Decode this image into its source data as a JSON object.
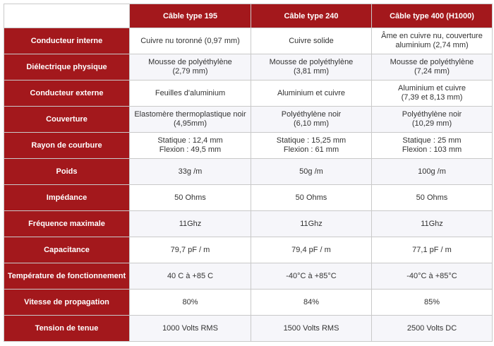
{
  "columns": [
    "Câble type 195",
    "Câble type 240",
    "Câble type 400 (H1000)"
  ],
  "rows": [
    {
      "label": "Conducteur interne",
      "values": [
        [
          "Cuivre nu toronné (0,97 mm)"
        ],
        [
          "Cuivre solide"
        ],
        [
          "Âme en cuivre nu, couverture",
          "aluminium (2,74 mm)"
        ]
      ]
    },
    {
      "label": "Diélectrique physique",
      "values": [
        [
          "Mousse de polyéthylène",
          "(2,79 mm)"
        ],
        [
          "Mousse de polyéthylène",
          "(3,81 mm)"
        ],
        [
          "Mousse de polyéthylène",
          "(7,24 mm)"
        ]
      ]
    },
    {
      "label": "Conducteur externe",
      "values": [
        [
          "Feuilles d'aluminium"
        ],
        [
          "Aluminium et cuivre"
        ],
        [
          "Aluminium et cuivre",
          "(7,39 et 8,13 mm)"
        ]
      ]
    },
    {
      "label": "Couverture",
      "values": [
        [
          "Elastomère thermoplastique noir",
          "(4,95mm)"
        ],
        [
          "Polyéthylène noir",
          "(6,10 mm)"
        ],
        [
          "Polyéthylène noir",
          "(10,29 mm)"
        ]
      ]
    },
    {
      "label": "Rayon de courbure",
      "values": [
        [
          "Statique : 12,4 mm",
          "Flexion : 49,5 mm"
        ],
        [
          "Statique : 15,25 mm",
          "Flexion : 61 mm"
        ],
        [
          "Statique : 25 mm",
          "Flexion : 103 mm"
        ]
      ]
    },
    {
      "label": "Poids",
      "values": [
        [
          "33g /m"
        ],
        [
          "50g /m"
        ],
        [
          "100g /m"
        ]
      ]
    },
    {
      "label": "Impédance",
      "values": [
        [
          "50 Ohms"
        ],
        [
          "50 Ohms"
        ],
        [
          "50 Ohms"
        ]
      ]
    },
    {
      "label": "Fréquence maximale",
      "values": [
        [
          "11Ghz"
        ],
        [
          "11Ghz"
        ],
        [
          "11Ghz"
        ]
      ]
    },
    {
      "label": "Capacitance",
      "values": [
        [
          "79,7 pF / m"
        ],
        [
          "79,4 pF / m"
        ],
        [
          "77,1 pF / m"
        ]
      ]
    },
    {
      "label": "Température de fonctionnement",
      "values": [
        [
          "40 C à +85 C"
        ],
        [
          "-40°C à +85°C"
        ],
        [
          "-40°C à +85°C"
        ]
      ]
    },
    {
      "label": "Vitesse de propagation",
      "values": [
        [
          "80%"
        ],
        [
          "84%"
        ],
        [
          "85%"
        ]
      ]
    },
    {
      "label": "Tension de tenue",
      "values": [
        [
          "1000 Volts RMS"
        ],
        [
          "1500 Volts RMS"
        ],
        [
          "2500 Volts DC"
        ]
      ]
    }
  ],
  "colors": {
    "header_red": "#a3181c",
    "header_text": "#ffffff",
    "cell_text": "#333333",
    "row_alt": "#f6f6fa"
  }
}
